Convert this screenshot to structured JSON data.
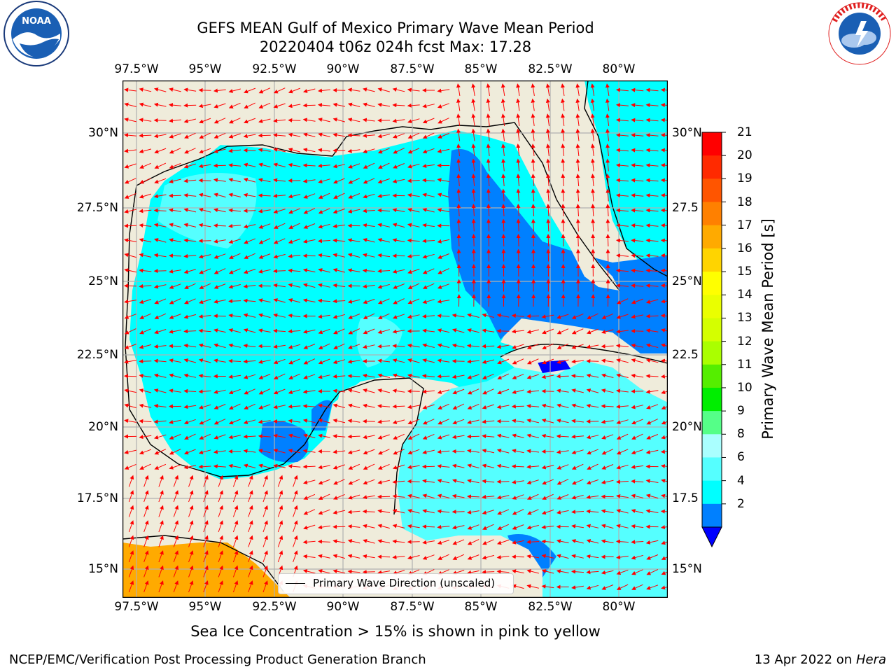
{
  "title_line1": "GEFS MEAN Gulf of Mexico Primary Wave Mean Period",
  "title_line2": "20220404 t06z 024h fcst   Max: 17.28",
  "x_ticks": [
    "97.5°W",
    "95°W",
    "92.5°W",
    "90°W",
    "87.5°W",
    "85°W",
    "82.5°W",
    "80°W"
  ],
  "y_ticks": [
    "30°N",
    "27.5°N",
    "25°N",
    "22.5°N",
    "20°N",
    "17.5°N",
    "15°N"
  ],
  "y_ticks_right": [
    "30°N",
    "27.5",
    "25°N",
    "22.5",
    "20°N",
    "17.5",
    "15°N"
  ],
  "colorbar": {
    "label": "Primary Wave Mean Period [s]",
    "ticks": [
      "21",
      "20",
      "19",
      "18",
      "17",
      "16",
      "15",
      "14",
      "13",
      "12",
      "11",
      "10",
      "9",
      "8",
      "6",
      "4",
      "2"
    ],
    "colors": [
      "#ff0000",
      "#ff2a00",
      "#ff5500",
      "#ff8000",
      "#ffaa00",
      "#ffd400",
      "#ffff00",
      "#eaff00",
      "#d4ff00",
      "#aaff00",
      "#55ee00",
      "#00ee00",
      "#55ff88",
      "#aaffff",
      "#55ffff",
      "#00ffff",
      "#0080ff"
    ],
    "under_color": "#0000ff"
  },
  "legend_label": "Primary Wave Direction (unscaled)",
  "sea_ice_note": "Sea Ice Concentration > 15% is shown in pink to yellow",
  "footer_left": "NCEP/EMC/Verification Post Processing Product Generation Branch",
  "footer_right_date": "13 Apr 2022 on ",
  "footer_right_machine": "Hera",
  "logos": {
    "left": "noaa-logo",
    "right": "nws-logo"
  },
  "colors": {
    "land": "#efecdb",
    "grid": "#b0b0b0",
    "arrow": "#ff0000",
    "ocean_main": "#00ffff",
    "ocean_light": "#55ffff",
    "ocean_dark": "#0080ff",
    "pacific": "#ffaa00"
  }
}
